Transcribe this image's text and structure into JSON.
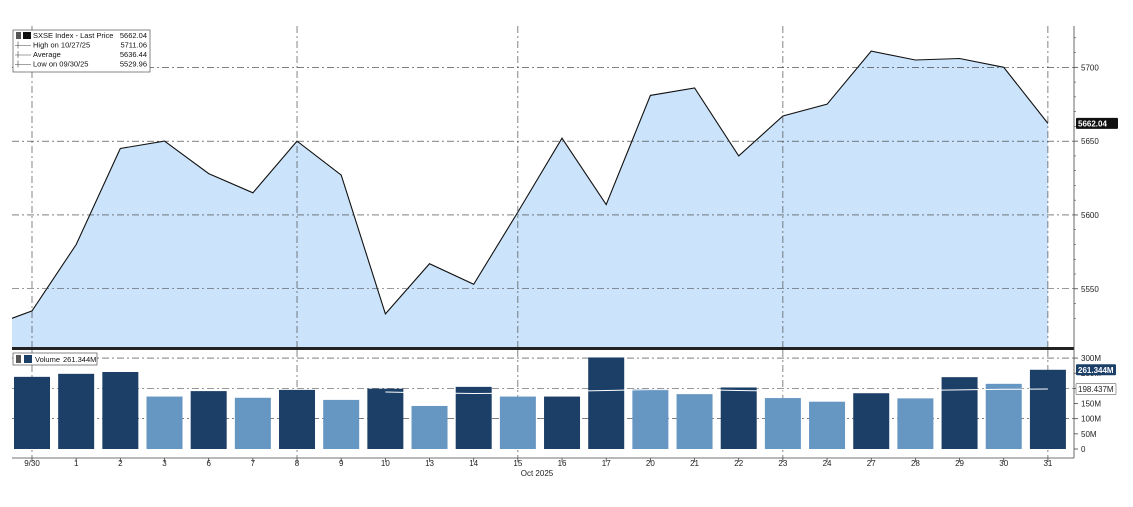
{
  "chart_data": [
    {
      "type": "area",
      "legend": {
        "items": [
          {
            "label": "SXSE Index - Last Price",
            "value": "5662.04"
          },
          {
            "label": "High on 10/27/25",
            "value": "5711.06"
          },
          {
            "label": "Average",
            "value": "5636.44"
          },
          {
            "label": "Low on 09/30/25",
            "value": "5529.96"
          }
        ]
      },
      "last_value_label": "5662.04",
      "colors": {
        "fill": "#cce4fb",
        "line": "#111111",
        "badge": "#111111"
      },
      "ylim": [
        5518,
        5728
      ],
      "y_ticks": [
        5550,
        5600,
        5650,
        5700
      ],
      "x": [
        "9/30",
        "1",
        "2",
        "3",
        "6",
        "7",
        "8",
        "9",
        "10",
        "13",
        "14",
        "15",
        "16",
        "17",
        "20",
        "21",
        "22",
        "23",
        "24",
        "27",
        "28",
        "29",
        "30",
        "31"
      ],
      "x_axis_sublabel": "Oct 2025",
      "start_value": 5529.96,
      "values": [
        5535,
        5580,
        5645,
        5650,
        5628,
        5615,
        5650,
        5627,
        5533,
        5567,
        5553,
        5602,
        5652,
        5607,
        5681,
        5686,
        5640,
        5667,
        5675,
        5711,
        5705,
        5706,
        5700,
        5662.04
      ],
      "grid": true,
      "legend_position": "top-left"
    },
    {
      "type": "bar",
      "legend": {
        "items": [
          {
            "label": "Volume",
            "value": "261.344M"
          }
        ]
      },
      "series_name": "Volume",
      "x": [
        "9/30",
        "1",
        "2",
        "3",
        "6",
        "7",
        "8",
        "9",
        "10",
        "13",
        "14",
        "15",
        "16",
        "17",
        "20",
        "21",
        "22",
        "23",
        "24",
        "27",
        "28",
        "29",
        "30",
        "31"
      ],
      "values": [
        238,
        248,
        254,
        173,
        191,
        169,
        195,
        162,
        199,
        142,
        205,
        173,
        173,
        302,
        198,
        181,
        203,
        168,
        156,
        184,
        167,
        237,
        215,
        261.344
      ],
      "up_day": [
        true,
        true,
        true,
        false,
        true,
        false,
        true,
        false,
        true,
        false,
        true,
        false,
        true,
        true,
        false,
        false,
        true,
        false,
        false,
        true,
        false,
        true,
        false,
        true
      ],
      "avg_line_values": [
        0,
        0,
        0,
        0,
        0,
        0,
        0,
        0,
        188,
        185,
        183,
        184,
        190,
        193,
        196,
        196,
        193,
        191,
        189,
        190,
        193,
        195,
        197,
        198
      ],
      "ylim": [
        0,
        320
      ],
      "y_ticks": [
        "0",
        "50M",
        "100M",
        "150M",
        "200M",
        "250M",
        "300M"
      ],
      "last_value_label": "261.344M",
      "average_value_label": "198.437M",
      "colors": {
        "up": "#1c3f68",
        "down": "#6696c2",
        "avg_line": "#ffffff"
      }
    }
  ]
}
